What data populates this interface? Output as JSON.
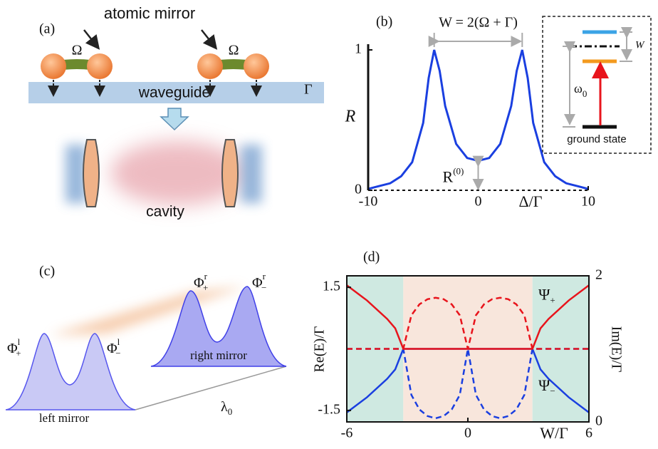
{
  "panels": {
    "a": {
      "tag": "(a)",
      "mirror_label": "atomic mirror",
      "omega_left": "Ω",
      "omega_right": "Ω",
      "gamma": "Γ",
      "waveguide": "waveguide",
      "cavity": "cavity"
    },
    "c": {
      "tag": "(c)",
      "phi_l_plus": {
        "base": "Φ",
        "sup": "l",
        "sub": "+"
      },
      "phi_l_minus": {
        "base": "Φ",
        "sup": "l",
        "sub": "−"
      },
      "phi_r_plus": {
        "base": "Φ",
        "sup": "r",
        "sub": "+"
      },
      "phi_r_minus": {
        "base": "Φ",
        "sup": "r",
        "sub": "−"
      },
      "right_mirror": "right mirror",
      "left_mirror": "left mirror",
      "lambda": {
        "base": "λ",
        "sub": "0"
      }
    }
  },
  "chart_data": [
    {
      "type": "line",
      "tag": "(b)",
      "xlabel": "Δ/Γ",
      "ylabel": "R",
      "color": "#1a3fe0",
      "x": [
        -10,
        -9,
        -8,
        -7,
        -6,
        -5,
        -4.5,
        -4,
        -3.5,
        -3,
        -2,
        -1,
        0,
        1,
        2,
        3,
        3.5,
        4,
        4.5,
        5,
        6,
        7,
        8,
        9,
        10
      ],
      "values": [
        0.01,
        0.03,
        0.05,
        0.1,
        0.2,
        0.48,
        0.8,
        1,
        0.85,
        0.6,
        0.33,
        0.23,
        0.21,
        0.23,
        0.33,
        0.6,
        0.85,
        1,
        0.8,
        0.48,
        0.2,
        0.1,
        0.05,
        0.03,
        0.01
      ],
      "xlim": [
        -10,
        10
      ],
      "xticks": [
        -10,
        0,
        10
      ],
      "ylim": [
        0,
        1
      ],
      "yticks": [
        0,
        1
      ],
      "width_annotation": "W = 2(Ω + Γ)",
      "dip_annotation": {
        "base": "R",
        "sup": "(0)"
      },
      "inset": {
        "w": "W",
        "omega0": {
          "base": "ω",
          "sub": "0"
        },
        "ground": "ground state"
      }
    },
    {
      "type": "line",
      "tag": "(d)",
      "xlabel": "W/Γ",
      "ylabel": "Re(E)/Γ",
      "y2label": "Im(E)/Γ",
      "x": [
        -6,
        -5,
        -4,
        -3.6,
        -3.2,
        -2.8,
        -2.4,
        -2,
        -1.6,
        -1.2,
        -0.8,
        -0.4,
        0,
        0.4,
        0.8,
        1.2,
        1.6,
        2,
        2.4,
        2.8,
        3.2,
        3.6,
        4,
        5,
        6
      ],
      "series": [
        {
          "color": "#1a3fe0",
          "dash": true,
          "axis": "y2",
          "values": [
            1,
            1,
            1,
            1,
            1,
            0.37,
            0.17,
            0.08,
            0.05,
            0.08,
            0.17,
            0.37,
            1,
            0.37,
            0.17,
            0.08,
            0.05,
            0.08,
            0.17,
            0.37,
            1,
            1,
            1,
            1,
            1
          ]
        },
        {
          "color": "#1a3fe0",
          "dash": false,
          "values": [
            -1.55,
            -1.18,
            -0.73,
            -0.5,
            0,
            0,
            0,
            0,
            0,
            0,
            0,
            0,
            0,
            0,
            0,
            0,
            0,
            0,
            0,
            0,
            0,
            -0.5,
            -0.73,
            -1.18,
            -1.55
          ]
        },
        {
          "color": "#e8141c",
          "dash": true,
          "axis": "y2",
          "values": [
            1,
            1,
            1,
            1,
            1,
            1.46,
            1.61,
            1.68,
            1.7,
            1.68,
            1.61,
            1.46,
            1,
            1.46,
            1.61,
            1.68,
            1.7,
            1.68,
            1.61,
            1.46,
            1,
            1,
            1,
            1,
            1
          ]
        },
        {
          "color": "#e8141c",
          "dash": false,
          "values": [
            1.55,
            1.18,
            0.73,
            0.5,
            0,
            0,
            0,
            0,
            0,
            0,
            0,
            0,
            0,
            0,
            0,
            0,
            0,
            0,
            0,
            0,
            0,
            0.5,
            0.73,
            1.18,
            1.55
          ]
        }
      ],
      "regions": [
        {
          "xlim": [
            -6,
            -3.2
          ],
          "color": "#cfe9e1"
        },
        {
          "xlim": [
            -3.2,
            3.2
          ],
          "color": "#f8e6dc"
        },
        {
          "xlim": [
            3.2,
            6
          ],
          "color": "#cfe9e1"
        }
      ],
      "xlim": [
        -6,
        6
      ],
      "xticks": [
        -6,
        0,
        6
      ],
      "ylim": [
        -1.78,
        1.78
      ],
      "yticks": [
        -1.5,
        1.5
      ],
      "y2lim": [
        0,
        2
      ],
      "y2ticks": [
        0,
        2
      ],
      "annotations": [
        {
          "label": {
            "base": "Ψ",
            "sub": "+"
          },
          "color": "#e8141c",
          "x": 3.5,
          "y2": 1.72
        },
        {
          "label": {
            "base": "Ψ",
            "sub": "−"
          },
          "color": "#1a3fe0",
          "x": 3.5,
          "y2": 0.48
        }
      ]
    }
  ]
}
